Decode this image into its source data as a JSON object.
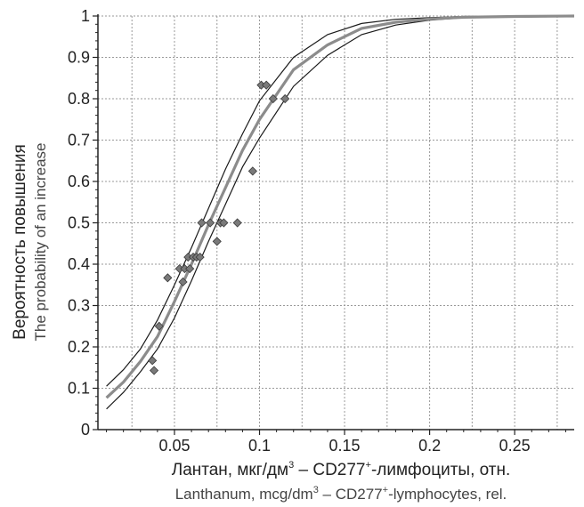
{
  "chart_data": {
    "type": "scatter",
    "x_axis": {
      "title_ru_main": "Лантан, мкг/дм",
      "title_ru_mid": " –  CD277",
      "title_ru_end": "-лимфоциты, отн.",
      "title_en_main": "Lanthanum, mcg/dm",
      "title_en_mid": " – CD277",
      "title_en_end": "-lymphocytes, rel.",
      "sup_3": "3",
      "sup_plus": "+",
      "range": [
        0.005,
        0.285
      ],
      "ticks": [
        0.05,
        0.1,
        0.15,
        0.2,
        0.25
      ],
      "tick_labels": [
        "0.05",
        "0.1",
        "0.15",
        "0.2",
        "0.25"
      ]
    },
    "y_axis": {
      "title_ru": "Вероятность повышения",
      "title_en": "The probability of an increase",
      "range": [
        0,
        1
      ],
      "ticks": [
        0,
        0.1,
        0.2,
        0.3,
        0.4,
        0.5,
        0.6,
        0.7,
        0.8,
        0.9,
        1
      ],
      "tick_labels": [
        "0",
        "0.1",
        "0.2",
        "0.3",
        "0.4",
        "0.5",
        "0.6",
        "0.7",
        "0.8",
        "0.9",
        "1"
      ]
    },
    "grid": true,
    "curve": {
      "x": [
        0.01,
        0.02,
        0.03,
        0.04,
        0.05,
        0.06,
        0.07,
        0.08,
        0.09,
        0.1,
        0.12,
        0.14,
        0.16,
        0.18,
        0.2,
        0.22,
        0.25,
        0.285
      ],
      "center": [
        0.077,
        0.115,
        0.165,
        0.225,
        0.31,
        0.4,
        0.495,
        0.585,
        0.675,
        0.75,
        0.87,
        0.93,
        0.97,
        0.985,
        0.993,
        0.997,
        0.999,
        1.0
      ],
      "upper": [
        0.105,
        0.145,
        0.195,
        0.265,
        0.35,
        0.44,
        0.535,
        0.63,
        0.715,
        0.795,
        0.9,
        0.955,
        0.982,
        0.992,
        0.996,
        0.999,
        1.0,
        1.0
      ],
      "lower": [
        0.05,
        0.09,
        0.14,
        0.195,
        0.27,
        0.36,
        0.455,
        0.545,
        0.635,
        0.705,
        0.83,
        0.905,
        0.955,
        0.978,
        0.99,
        0.996,
        0.999,
        1.0
      ]
    },
    "points": [
      {
        "x": 0.037,
        "y": 0.167
      },
      {
        "x": 0.038,
        "y": 0.143
      },
      {
        "x": 0.041,
        "y": 0.25
      },
      {
        "x": 0.046,
        "y": 0.367
      },
      {
        "x": 0.053,
        "y": 0.389
      },
      {
        "x": 0.055,
        "y": 0.357
      },
      {
        "x": 0.056,
        "y": 0.389
      },
      {
        "x": 0.058,
        "y": 0.417
      },
      {
        "x": 0.059,
        "y": 0.389
      },
      {
        "x": 0.061,
        "y": 0.417
      },
      {
        "x": 0.063,
        "y": 0.417
      },
      {
        "x": 0.065,
        "y": 0.417
      },
      {
        "x": 0.066,
        "y": 0.5
      },
      {
        "x": 0.071,
        "y": 0.5
      },
      {
        "x": 0.075,
        "y": 0.455
      },
      {
        "x": 0.077,
        "y": 0.5
      },
      {
        "x": 0.079,
        "y": 0.5
      },
      {
        "x": 0.087,
        "y": 0.5
      },
      {
        "x": 0.096,
        "y": 0.625
      },
      {
        "x": 0.101,
        "y": 0.833
      },
      {
        "x": 0.104,
        "y": 0.833
      },
      {
        "x": 0.108,
        "y": 0.8
      },
      {
        "x": 0.115,
        "y": 0.8
      }
    ],
    "colors": {
      "center_line": "#8c8c8c",
      "band_lines": "#1a1a1a",
      "point_fill": "#7a7a7a",
      "point_stroke": "#3a3a3a",
      "grid": "#9a9a9a",
      "axis": "#222222"
    }
  }
}
